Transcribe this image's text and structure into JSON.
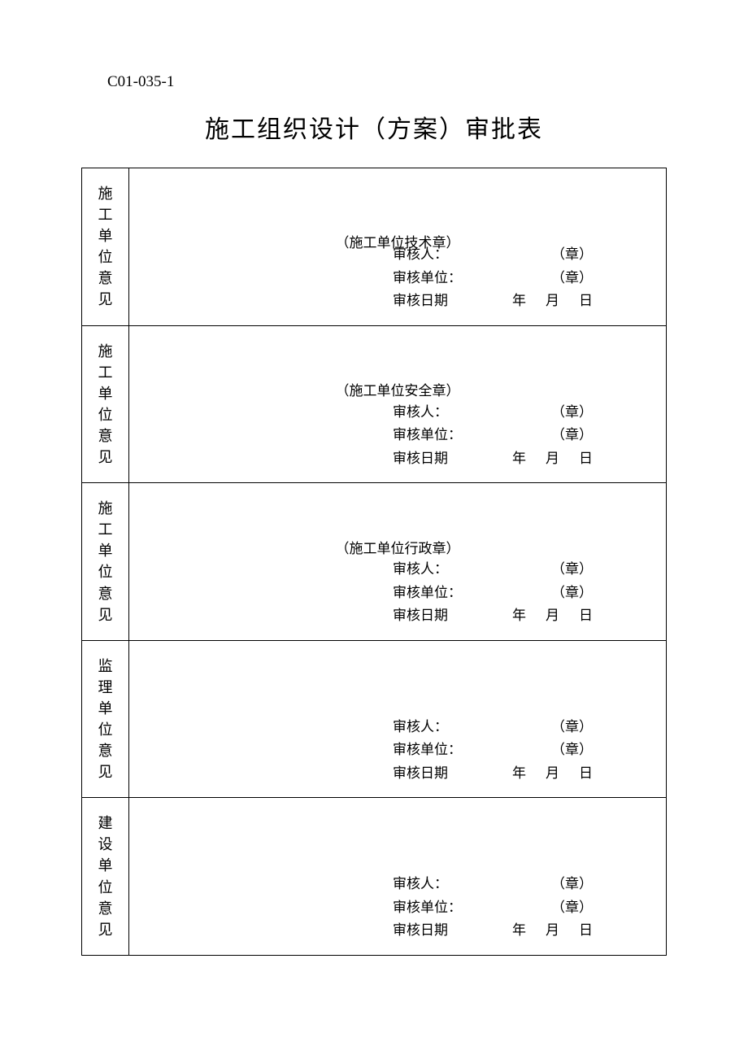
{
  "doc_code": "C01-035-1",
  "doc_title": "施工组织设计（方案）审批表",
  "rows": [
    {
      "label": "施工单位意见",
      "stamp_note": "（施工单位技术章）",
      "reviewer_label": "审核人：",
      "reviewer_tail": "（章）",
      "unit_label": "审核单位：",
      "unit_tail": "（章）",
      "date_label": "审核日期",
      "year_unit": "年",
      "month_unit": "月",
      "day_unit": "日"
    },
    {
      "label": "施工单位意见",
      "stamp_note": "（施工单位安全章）",
      "reviewer_label": "审核人：",
      "reviewer_tail": "（章）",
      "unit_label": "审核单位：",
      "unit_tail": "（章）",
      "date_label": "审核日期",
      "year_unit": "年",
      "month_unit": "月",
      "day_unit": "日"
    },
    {
      "label": "施工单位意见",
      "stamp_note": "（施工单位行政章）",
      "reviewer_label": "审核人：",
      "reviewer_tail": "（章）",
      "unit_label": "审核单位：",
      "unit_tail": "（章）",
      "date_label": "审核日期",
      "year_unit": "年",
      "month_unit": "月",
      "day_unit": "日"
    },
    {
      "label": "监理单位意见",
      "stamp_note": "",
      "reviewer_label": "审核人：",
      "reviewer_tail": "（章）",
      "unit_label": "审核单位：",
      "unit_tail": "（章）",
      "date_label": "审核日期",
      "year_unit": "年",
      "month_unit": "月",
      "day_unit": "日"
    },
    {
      "label": "建设单位意见",
      "stamp_note": "",
      "reviewer_label": "审核人：",
      "reviewer_tail": "（章）",
      "unit_label": "审核单位：",
      "unit_tail": "（章）",
      "date_label": "审核日期",
      "year_unit": "年",
      "month_unit": "月",
      "day_unit": "日"
    }
  ],
  "styling": {
    "page_background": "#ffffff",
    "text_color": "#000000",
    "border_color": "#000000",
    "title_fontsize": 30,
    "body_fontsize": 17,
    "code_fontsize": 19,
    "label_fontsize": 18,
    "font_family": "SimSun"
  }
}
